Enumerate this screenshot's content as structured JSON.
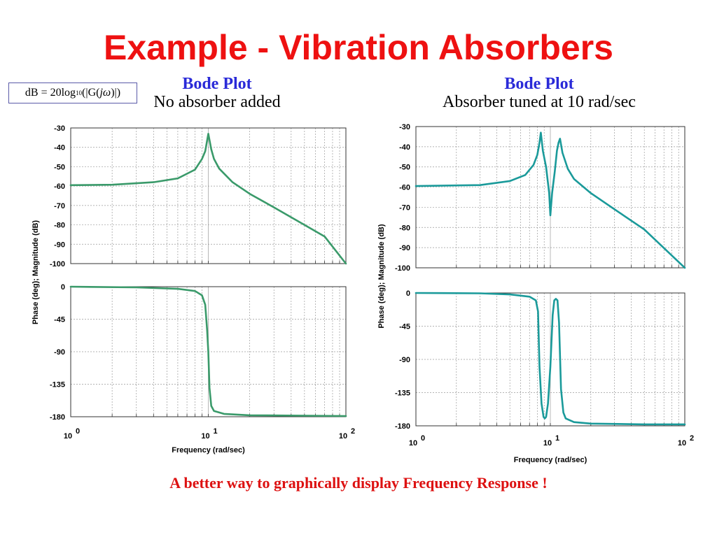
{
  "slide": {
    "title": "Example - Vibration Absorbers",
    "footer": "A better way to graphically display Frequency Response !"
  },
  "formula": {
    "lhs": "dB = 20log",
    "subscript": "10",
    "open": "(|G(",
    "var": "jω",
    "close": ")|)"
  },
  "colors": {
    "title": "#ee1111",
    "heading": "#2a2ad8",
    "curve_left": "#3a9a6a",
    "curve_right": "#1a9a9a",
    "footer": "#dd1111"
  },
  "chart_data": [
    {
      "type": "line",
      "heading": "Bode Plot",
      "subheading": "No absorber added",
      "panels": [
        {
          "name": "magnitude",
          "ylim": [
            -100,
            -30
          ],
          "yticks": [
            -30,
            -40,
            -50,
            -60,
            -70,
            -80,
            -90,
            -100
          ],
          "x": [
            1,
            2,
            4,
            6,
            8,
            9,
            9.5,
            10,
            10.5,
            11,
            12,
            15,
            20,
            30,
            50,
            70,
            100
          ],
          "y": [
            -59.5,
            -59.3,
            -58,
            -56,
            -51.5,
            -46,
            -42,
            -33,
            -41,
            -46,
            -51,
            -58,
            -64,
            -71,
            -80,
            -86,
            -100
          ]
        },
        {
          "name": "phase",
          "ylim": [
            -180,
            0
          ],
          "yticks": [
            0,
            -45,
            -90,
            -135,
            -180
          ],
          "x": [
            1,
            3,
            6,
            8,
            9,
            9.5,
            9.8,
            10,
            10.2,
            10.5,
            11,
            13,
            20,
            100
          ],
          "y": [
            0,
            -1,
            -3,
            -6,
            -12,
            -25,
            -60,
            -90,
            -140,
            -165,
            -172,
            -176,
            -178,
            -179
          ]
        }
      ],
      "xlabel": "Frequency (rad/sec)",
      "ylabel": "Phase (deg); Magnitude (dB)",
      "xscale": "log",
      "xlim": [
        1,
        100
      ],
      "xticks": [
        "10",
        "10",
        "10"
      ],
      "xtick_exps": [
        "0",
        "1",
        "2"
      ],
      "grid": true
    },
    {
      "type": "line",
      "heading": "Bode Plot",
      "subheading": "Absorber tuned at 10 rad/sec",
      "panels": [
        {
          "name": "magnitude",
          "ylim": [
            -100,
            -30
          ],
          "yticks": [
            -30,
            -40,
            -50,
            -60,
            -70,
            -80,
            -90,
            -100
          ],
          "x": [
            1,
            3,
            5,
            6.5,
            7.5,
            8.0,
            8.3,
            8.5,
            8.8,
            9.3,
            9.8,
            10.0,
            10.3,
            10.8,
            11.2,
            11.5,
            11.8,
            12.3,
            13.5,
            15,
            20,
            30,
            50,
            100
          ],
          "y": [
            -59.5,
            -59,
            -57,
            -54,
            -49,
            -44,
            -38,
            -33,
            -42,
            -50,
            -63,
            -74,
            -63,
            -52,
            -42,
            -38,
            -36,
            -43,
            -51,
            -56,
            -63,
            -71,
            -81,
            -100
          ]
        },
        {
          "name": "phase",
          "ylim": [
            -180,
            0
          ],
          "yticks": [
            0,
            -45,
            -90,
            -135,
            -180
          ],
          "x": [
            1,
            3,
            5,
            7,
            7.8,
            8.1,
            8.3,
            8.6,
            8.9,
            9.1,
            9.3,
            9.6,
            10,
            10.4,
            10.7,
            11.0,
            11.3,
            11.6,
            12.0,
            12.5,
            13,
            15,
            20,
            50,
            100
          ],
          "y": [
            0,
            -0.5,
            -2,
            -5,
            -10,
            -25,
            -100,
            -150,
            -168,
            -170,
            -168,
            -150,
            -100,
            -30,
            -10,
            -8,
            -10,
            -40,
            -130,
            -162,
            -170,
            -175,
            -177,
            -178,
            -178
          ]
        }
      ],
      "xlabel": "Frequency (rad/sec)",
      "ylabel": "Phase (deg); Magnitude (dB)",
      "xscale": "log",
      "xlim": [
        1,
        100
      ],
      "xticks": [
        "10",
        "10",
        "10"
      ],
      "xtick_exps": [
        "0",
        "1",
        "2"
      ],
      "grid": true
    }
  ]
}
